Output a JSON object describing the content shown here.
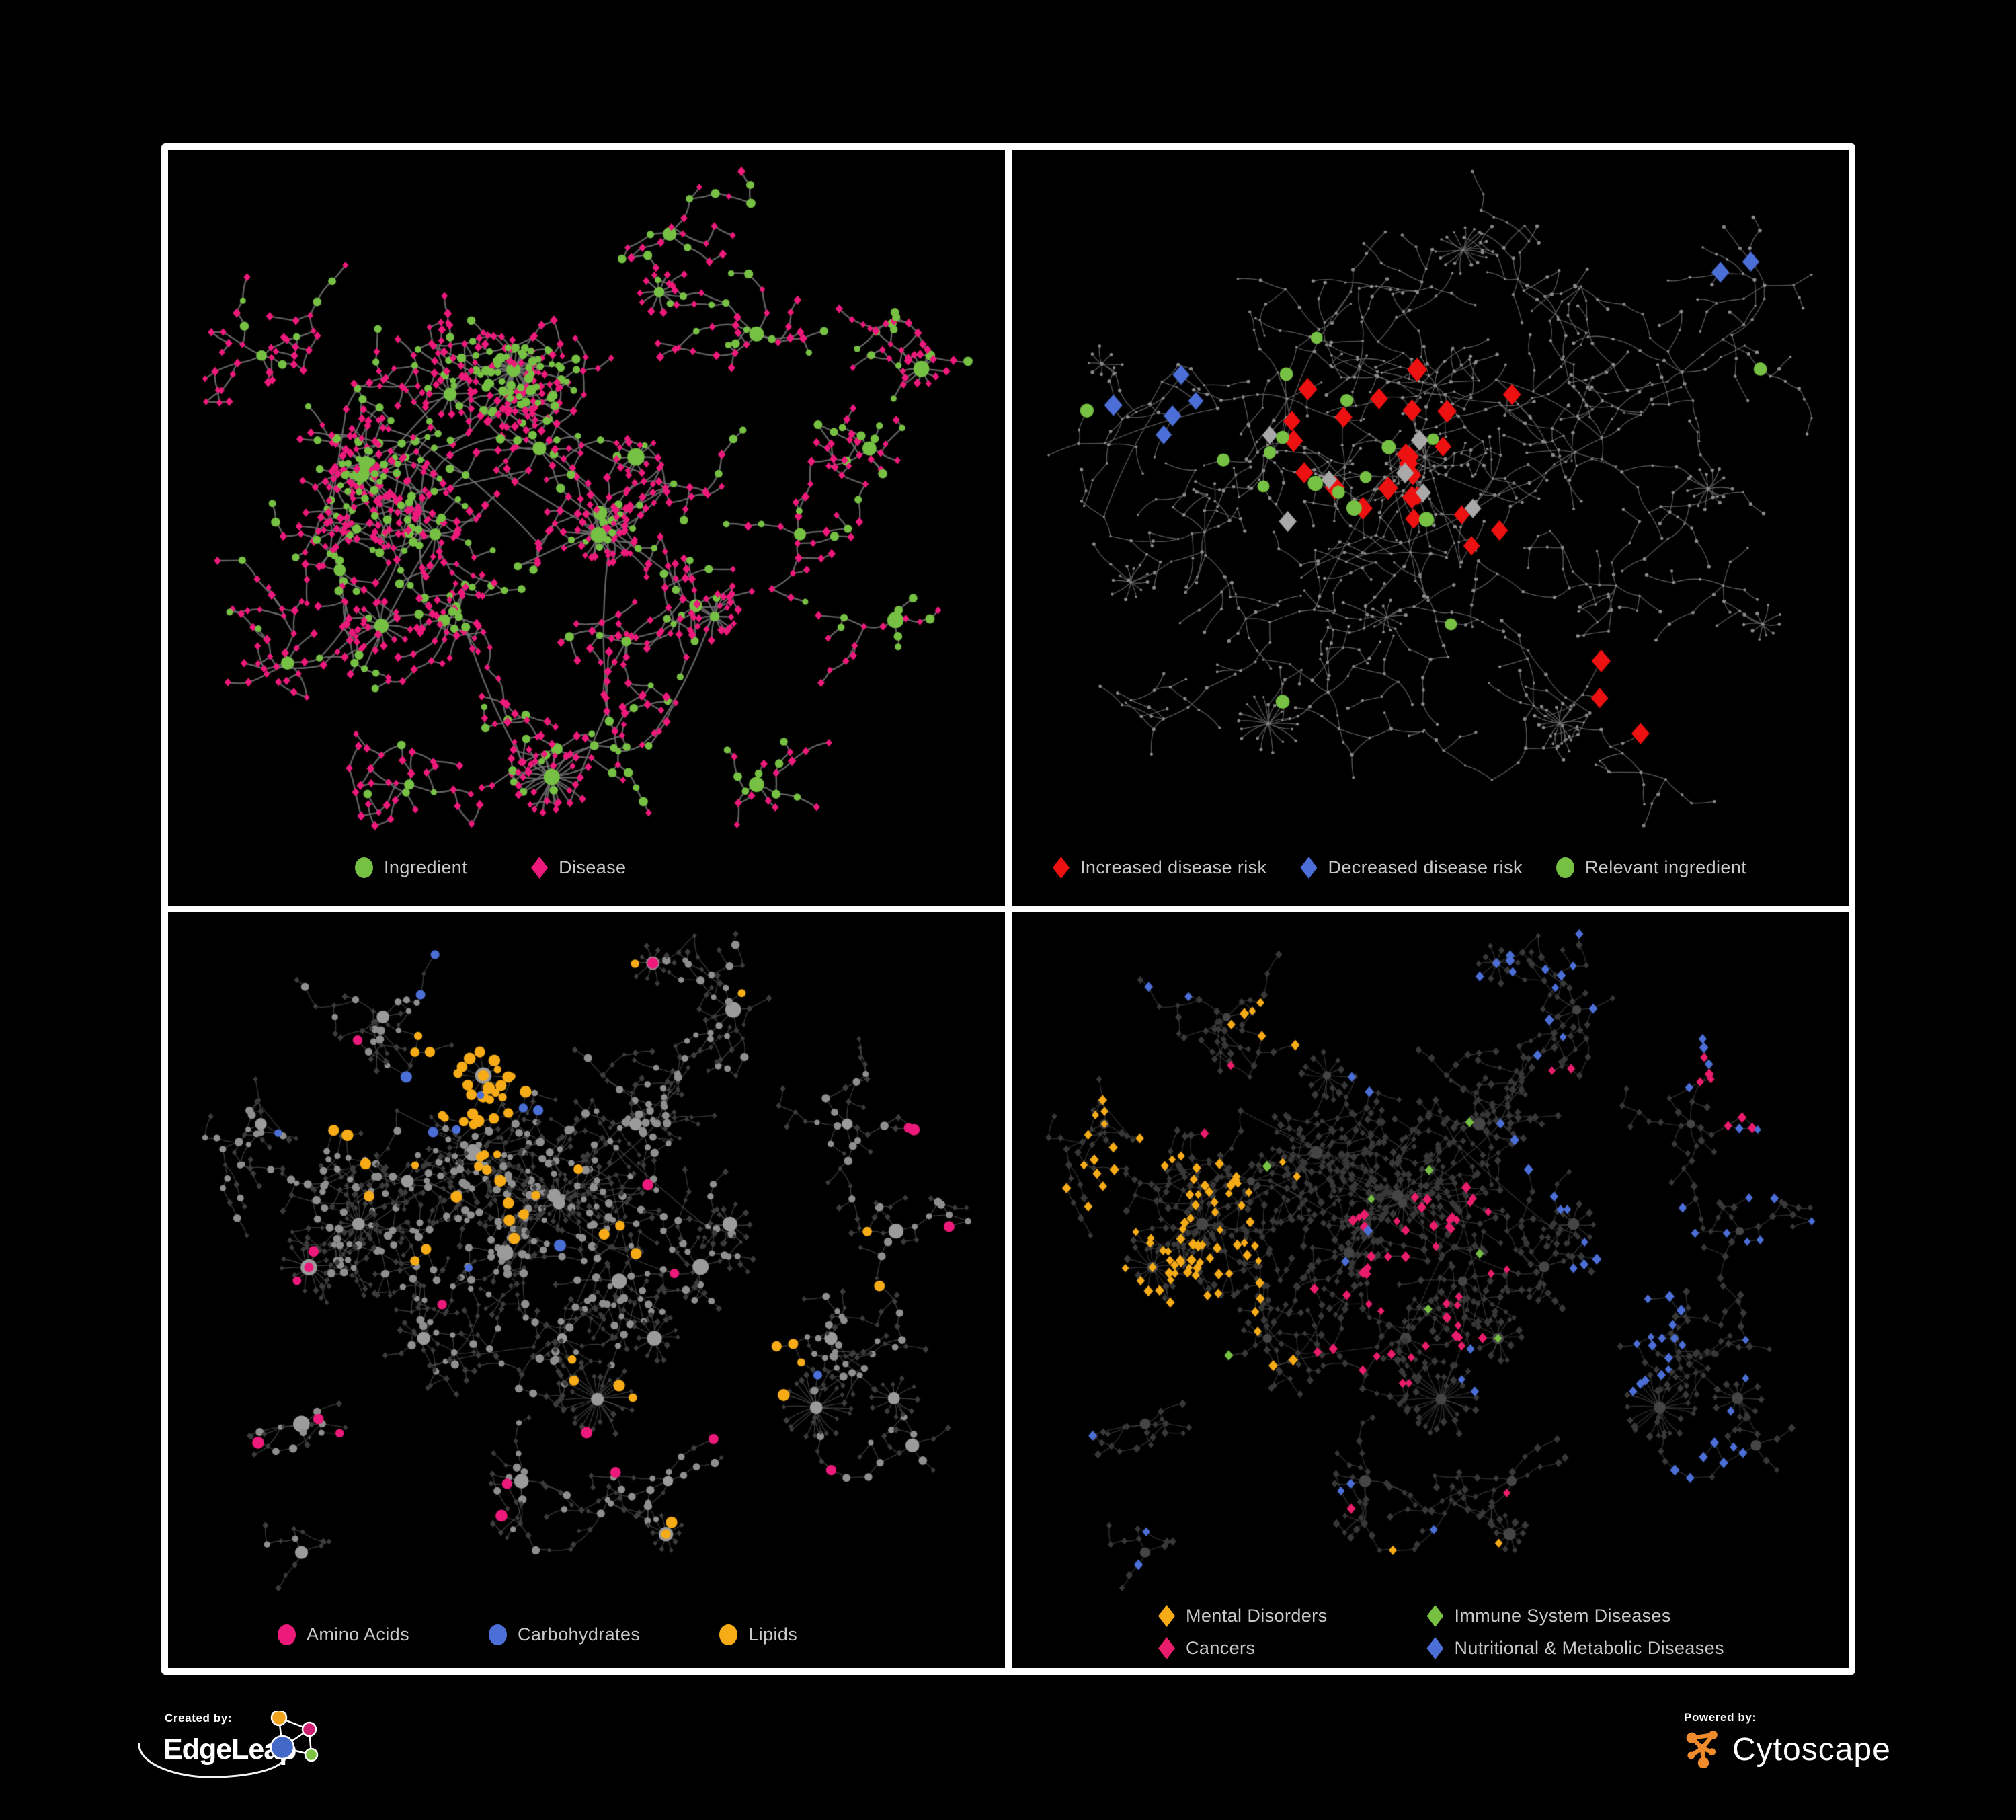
{
  "figure": {
    "background": "#000000",
    "frame_color": "#ffffff",
    "label_color": "#c9c9c9"
  },
  "panels": [
    {
      "id": "ingredient-disease",
      "legend": [
        {
          "label": "Ingredient",
          "shape": "circle",
          "color": "#76c043"
        },
        {
          "label": "Disease",
          "shape": "diamond",
          "color": "#ed1a7b"
        }
      ],
      "network": {
        "seed": 11,
        "edge_color": "#6e6e6e",
        "node_colors": {
          "ingredient": "#76c043",
          "disease": "#ed1a7b"
        }
      }
    },
    {
      "id": "disease-risk",
      "legend": [
        {
          "label": "Increased disease risk",
          "shape": "diamond",
          "color": "#ed1111"
        },
        {
          "label": "Decreased disease risk",
          "shape": "diamond",
          "color": "#4b6fd6"
        },
        {
          "label": "Relevant ingredient",
          "shape": "circle",
          "color": "#76c043"
        }
      ],
      "network": {
        "seed": 22,
        "edge_color": "#646464",
        "base_node_color": "#8a8a8a",
        "highlight_counts": {
          "increased_risk_red": 27,
          "decreased_risk_blue": 7,
          "neutral_gray": 7,
          "relevant_ingredient_green": 18
        },
        "highlight_colors": {
          "red": "#ed1111",
          "blue": "#4b6fd6",
          "gray": "#a9a9a9",
          "green": "#76c043"
        }
      }
    },
    {
      "id": "nutrient-classes",
      "legend": [
        {
          "label": "Amino Acids",
          "shape": "circle",
          "color": "#ed1a7b"
        },
        {
          "label": "Carbohydrates",
          "shape": "circle",
          "color": "#4b6fd6"
        },
        {
          "label": "Lipids",
          "shape": "circle",
          "color": "#f7ac17"
        }
      ],
      "network": {
        "seed": 33,
        "edge_color": "#6a6a6a",
        "base_circle_color": "#8f8f8f",
        "base_diamond_color": "#3c3c3c",
        "highlight_colors": {
          "amino_acids": "#ed1a7b",
          "carbohydrates": "#4b6fd6",
          "lipids": "#f7ac17"
        }
      }
    },
    {
      "id": "disease-classes",
      "legend": [
        {
          "label": "Mental Disorders",
          "shape": "diamond",
          "color": "#f7ac17"
        },
        {
          "label": "Immune System Diseases",
          "shape": "diamond",
          "color": "#76c043"
        },
        {
          "label": "Cancers",
          "shape": "diamond",
          "color": "#ea1d6d"
        },
        {
          "label": "Nutritional & Metabolic Diseases",
          "shape": "diamond",
          "color": "#4b6fd6"
        }
      ],
      "network": {
        "seed": 33,
        "edge_color": "#636363",
        "base_diamond_color": "#383838",
        "base_circle_color": "#454545",
        "highlight_colors": {
          "mental": "#f7ac17",
          "immune": "#76c043",
          "cancers": "#ea1d6d",
          "nutritional": "#4b6fd6"
        }
      }
    }
  ],
  "footer": {
    "created_by": "Created by:",
    "brand_left": "EdgeLeap",
    "powered_by": "Powered by:",
    "brand_right": "Cytoscape",
    "edgeleap_icon_colors": {
      "blue": "#4468c8",
      "orange": "#f0a31c",
      "pink": "#cf1f71",
      "green": "#7cc142"
    },
    "cytoscape_orange": "#ef8b2c"
  }
}
